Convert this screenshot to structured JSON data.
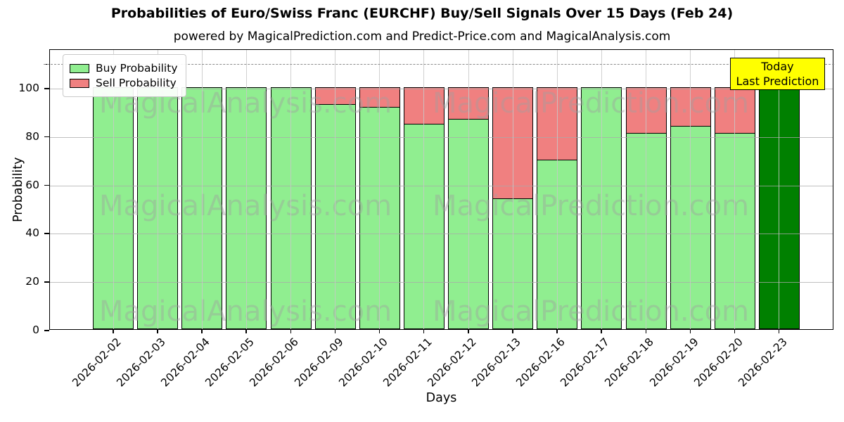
{
  "header": {
    "title": "Probabilities of Euro/Swiss Franc (EURCHF) Buy/Sell Signals Over 15 Days (Feb 24)",
    "subtitle": "powered by MagicalPrediction.com and Predict-Price.com and MagicalAnalysis.com"
  },
  "legend": {
    "items": [
      {
        "label": "Buy Probability",
        "color": "#90EE90"
      },
      {
        "label": "Sell Probability",
        "color": "#F08080"
      }
    ]
  },
  "annotation_box": {
    "lines": [
      "Today",
      "Last Prediction"
    ],
    "bg_color": "#FFFF00"
  },
  "watermarks": {
    "left": "MagicalAnalysis.com",
    "right": "MagicalPrediction.com"
  },
  "chart_data": {
    "type": "bar",
    "stacked": true,
    "title": "Probabilities of Euro/Swiss Franc (EURCHF) Buy/Sell Signals Over 15 Days (Feb 24)",
    "xlabel": "Days",
    "ylabel": "Probability",
    "categories": [
      "2026-02-02",
      "2026-02-03",
      "2026-02-04",
      "2026-02-05",
      "2026-02-06",
      "2026-02-09",
      "2026-02-10",
      "2026-02-11",
      "2026-02-12",
      "2026-02-13",
      "2026-02-16",
      "2026-02-17",
      "2026-02-18",
      "2026-02-19",
      "2026-02-20",
      "2026-02-23"
    ],
    "series": [
      {
        "name": "Buy Probability",
        "color": "#90EE90",
        "values": [
          100,
          100,
          100,
          100,
          100,
          93,
          92,
          85,
          87,
          54,
          70,
          100,
          81,
          84,
          81,
          100
        ]
      },
      {
        "name": "Sell Probability",
        "color": "#F08080",
        "values": [
          0,
          0,
          0,
          0,
          0,
          7,
          8,
          15,
          13,
          46,
          30,
          0,
          19,
          16,
          19,
          0
        ]
      }
    ],
    "today_bar": {
      "category": "2026-02-23",
      "index": 15,
      "color": "#008000",
      "label": "Today Last Prediction"
    },
    "ylim": [
      0,
      116
    ],
    "yticks": [
      0,
      20,
      40,
      60,
      80,
      100
    ],
    "dashed_line_y": 110,
    "grid": true,
    "legend_position": "upper-left"
  },
  "colors": {
    "grid": "#AAAAAA",
    "dashed_line": "#8A8A8A",
    "bar_edge": "#000000",
    "today_green": "#008000",
    "buy_green": "#90EE90",
    "sell_red": "#F08080",
    "annotation_bg": "#FFFF00",
    "watermark": "#A0A0A0"
  }
}
